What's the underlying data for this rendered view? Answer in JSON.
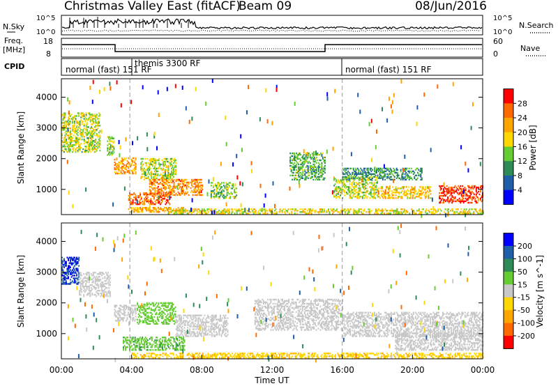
{
  "header": {
    "station": "Christmas Valley East (fitACF)",
    "beam": "Beam 09",
    "date": "08/Jun/2016"
  },
  "top_panels": {
    "nsky_label": "N.Sky",
    "nsky_ticks": [
      "10^5",
      "10^0"
    ],
    "nsearch_label": "N.Search",
    "freq_label": "Freq.",
    "freq_unit": "[MHz]",
    "freq_ticks": [
      "18",
      "8"
    ],
    "nave_label": "Nave",
    "nave_ticks": [
      "60",
      "0"
    ],
    "cpid_label": "CPID",
    "cpid_segments": [
      {
        "label": "normal (fast) 151 RF",
        "start_hour": 0.0
      },
      {
        "label": "themis 3300 RF",
        "start_hour": 3.9
      },
      {
        "label": "normal (fast) 151 RF",
        "start_hour": 16.0
      }
    ]
  },
  "colors": {
    "power_scale": [
      "#0000ff",
      "#1e5fa8",
      "#2e8b57",
      "#66cc33",
      "#ffd700",
      "#ffa500",
      "#ff6a00",
      "#ff0000"
    ],
    "velocity_scale": [
      "#0000ff",
      "#1e5fa8",
      "#2e8b57",
      "#66cc33",
      "#c8c8c8",
      "#ffd700",
      "#ffa500",
      "#ff6a00",
      "#ff0000"
    ],
    "dashed_line": "#999999"
  },
  "chart_data": [
    {
      "type": "heatmap",
      "name": "power",
      "ylabel": "Slant Range [km]",
      "xlabel": "",
      "xlim": [
        0,
        24
      ],
      "ylim": [
        180,
        4600
      ],
      "yticks": [
        "1000",
        "2000",
        "3000",
        "4000"
      ],
      "colorbar": {
        "label": "Power [dB]",
        "ticks": [
          "4",
          "8",
          "12",
          "16",
          "20",
          "24",
          "28"
        ],
        "range": [
          0,
          32
        ]
      },
      "regions": [
        {
          "t": [
            0.0,
            2.2
          ],
          "r": [
            2200,
            3500
          ],
          "v": 16
        },
        {
          "t": [
            2.6,
            3.0
          ],
          "r": [
            2100,
            2700
          ],
          "v": 14
        },
        {
          "t": [
            3.0,
            4.2
          ],
          "r": [
            1500,
            2000
          ],
          "v": 22
        },
        {
          "t": [
            4.5,
            6.5
          ],
          "r": [
            1300,
            2000
          ],
          "v": 16
        },
        {
          "t": [
            3.8,
            6.2
          ],
          "r": [
            500,
            900
          ],
          "v": 26
        },
        {
          "t": [
            5.0,
            8.0
          ],
          "r": [
            800,
            1300
          ],
          "v": 24
        },
        {
          "t": [
            3.8,
            7.0
          ],
          "r": [
            250,
            400
          ],
          "v": 22
        },
        {
          "t": [
            8.5,
            10.0
          ],
          "r": [
            700,
            1200
          ],
          "v": 14
        },
        {
          "t": [
            13.0,
            15.0
          ],
          "r": [
            1300,
            2200
          ],
          "v": 12
        },
        {
          "t": [
            15.5,
            18.0
          ],
          "r": [
            700,
            1400
          ],
          "v": 16
        },
        {
          "t": [
            16.0,
            20.5
          ],
          "r": [
            1300,
            1700
          ],
          "v": 10
        },
        {
          "t": [
            18.0,
            21.0
          ],
          "r": [
            700,
            1100
          ],
          "v": 20
        },
        {
          "t": [
            21.5,
            24.0
          ],
          "r": [
            550,
            1100
          ],
          "v": 28
        },
        {
          "t": [
            6.0,
            24.0
          ],
          "r": [
            200,
            350
          ],
          "v": 18
        }
      ]
    },
    {
      "type": "heatmap",
      "name": "velocity",
      "ylabel": "Slant Range [km]",
      "xlabel": "Time UT",
      "xlim": [
        0,
        24
      ],
      "ylim": [
        180,
        4600
      ],
      "yticks": [
        "1000",
        "2000",
        "3000",
        "4000"
      ],
      "xticks": [
        "00:00",
        "04:00",
        "08:00",
        "12:00",
        "16:00",
        "20:00",
        "00:00"
      ],
      "colorbar": {
        "label": "Velocity [m s^-1]",
        "ticks": [
          "200",
          "100",
          "50",
          "15",
          "-15",
          "-50",
          "-100",
          "-200"
        ]
      },
      "regions": [
        {
          "t": [
            0.0,
            1.0
          ],
          "r": [
            2600,
            3500
          ],
          "v": 200
        },
        {
          "t": [
            1.0,
            2.8
          ],
          "r": [
            2200,
            3000
          ],
          "v": 0
        },
        {
          "t": [
            3.0,
            4.2
          ],
          "r": [
            1400,
            1900
          ],
          "v": 0
        },
        {
          "t": [
            4.3,
            6.5
          ],
          "r": [
            1300,
            2000
          ],
          "v": 30
        },
        {
          "t": [
            6.5,
            9.5
          ],
          "r": [
            900,
            1600
          ],
          "v": 0
        },
        {
          "t": [
            3.5,
            7.0
          ],
          "r": [
            450,
            900
          ],
          "v": 40
        },
        {
          "t": [
            11.0,
            16.0
          ],
          "r": [
            1100,
            2100
          ],
          "v": 0
        },
        {
          "t": [
            16.0,
            24.0
          ],
          "r": [
            900,
            1700
          ],
          "v": 0
        },
        {
          "t": [
            19.0,
            24.0
          ],
          "r": [
            450,
            1000
          ],
          "v": 0
        },
        {
          "t": [
            4.0,
            24.0
          ],
          "r": [
            200,
            350
          ],
          "v": -40
        }
      ]
    }
  ]
}
